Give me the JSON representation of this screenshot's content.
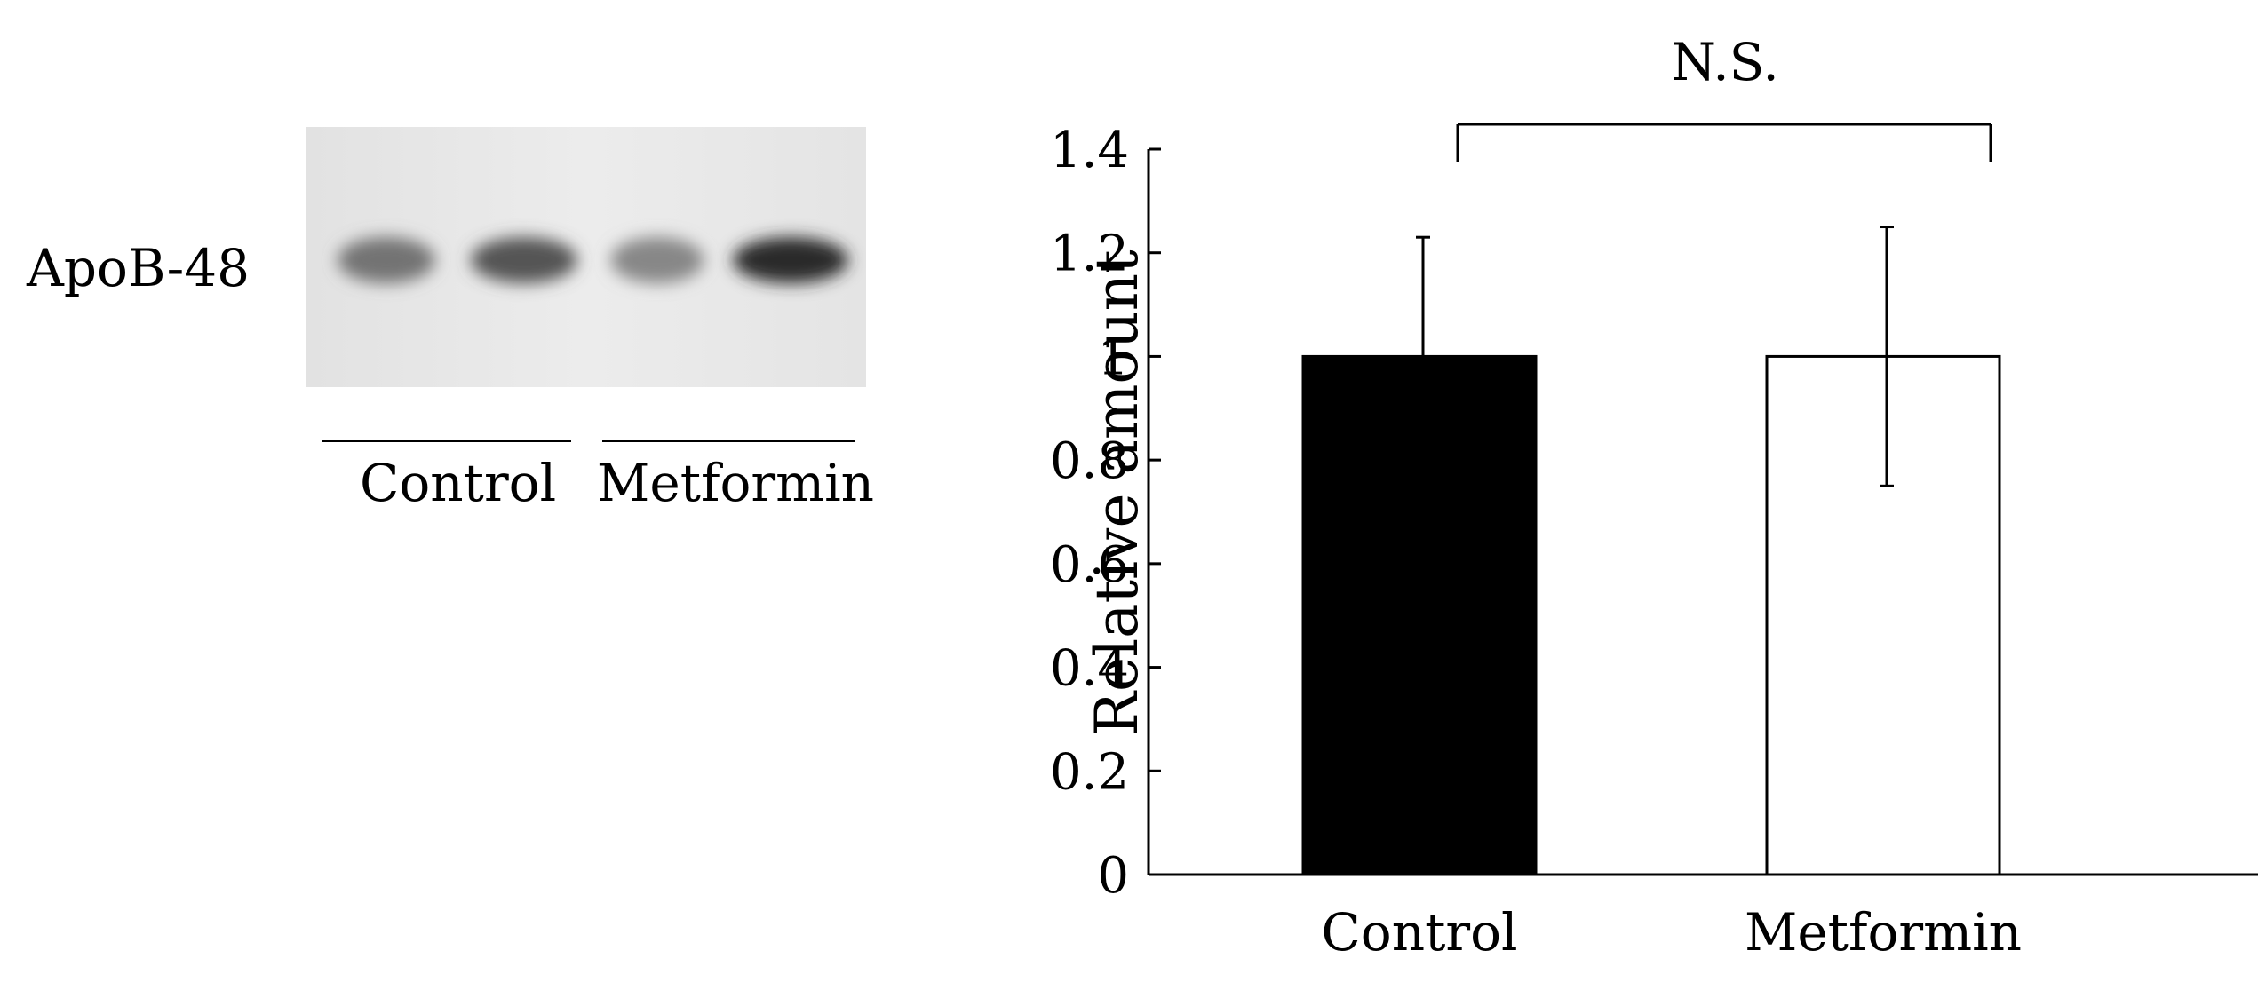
{
  "blot": {
    "protein_label": "ApoB-48",
    "groups": [
      {
        "label": "Control",
        "lanes": 2
      },
      {
        "label": "Metformin",
        "lanes": 2
      }
    ],
    "band_intensity": [
      0.55,
      0.7,
      0.45,
      0.92
    ]
  },
  "chart_data": {
    "type": "bar",
    "categories": [
      "Control",
      "Metformin"
    ],
    "values": [
      1.0,
      1.0
    ],
    "error_bars": [
      0.23,
      0.25
    ],
    "bar_colors": [
      "#000000",
      "#ffffff"
    ],
    "title": "",
    "xlabel": "",
    "ylabel": "Relative amount",
    "ylim": [
      0,
      1.4
    ],
    "yticks": [
      0,
      0.2,
      0.4,
      0.6,
      0.8,
      1,
      1.2,
      1.4
    ],
    "ytick_labels": [
      "0",
      "0.2",
      "0.4",
      "0.6",
      "0.8",
      "1",
      "1.2",
      "1.4"
    ],
    "annotation": "N.S.",
    "grid": false
  }
}
